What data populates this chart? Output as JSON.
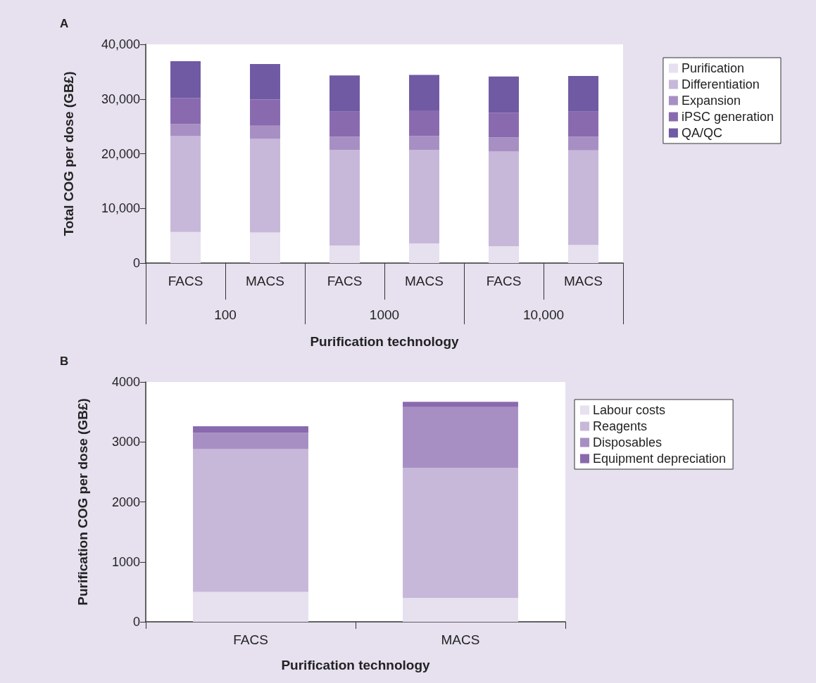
{
  "chart_data": [
    {
      "type": "bar",
      "title": "A",
      "stacked": true,
      "ylabel": "Total COG per dose (GB£)",
      "xlabel": "Purification technology",
      "categories": [
        "FACS",
        "MACS",
        "FACS",
        "MACS",
        "FACS",
        "MACS"
      ],
      "annotations": [
        "100",
        "1000",
        "10,000"
      ],
      "series": [
        {
          "name": "Purification",
          "color": "#e6e0ef",
          "values": [
            5700,
            5600,
            3200,
            3600,
            3100,
            3300
          ]
        },
        {
          "name": "Differentiation",
          "color": "#c7b8da",
          "values": [
            17500,
            17100,
            17500,
            17100,
            17300,
            17300
          ]
        },
        {
          "name": "Expansion",
          "color": "#a78fc4",
          "values": [
            2200,
            2400,
            2400,
            2500,
            2600,
            2500
          ]
        },
        {
          "name": "iPSC generation",
          "color": "#8a6aae",
          "values": [
            4800,
            4800,
            4600,
            4700,
            4500,
            4600
          ]
        },
        {
          "name": "QA/QC",
          "color": "#6f5aa3",
          "values": [
            6700,
            6500,
            6600,
            6500,
            6600,
            6500
          ]
        }
      ],
      "ylim": [
        0,
        40000
      ],
      "yticks": [
        {
          "value": 0,
          "label": "0"
        },
        {
          "value": 10000,
          "label": "10,000"
        },
        {
          "value": 20000,
          "label": "20,000"
        },
        {
          "value": 30000,
          "label": "30,000"
        },
        {
          "value": 40000,
          "label": "40,000"
        }
      ],
      "grid": false,
      "legend": "top right"
    },
    {
      "type": "bar",
      "title": "B",
      "stacked": true,
      "ylabel": "Purification COG per dose (GB£)",
      "xlabel": "Purification technology",
      "categories": [
        "FACS",
        "MACS"
      ],
      "series": [
        {
          "name": "Labour costs",
          "color": "#e6e0ef",
          "values": [
            500,
            400
          ]
        },
        {
          "name": "Reagents",
          "color": "#c7b8da",
          "values": [
            2380,
            2170
          ]
        },
        {
          "name": "Disposables",
          "color": "#a78fc4",
          "values": [
            270,
            1010
          ]
        },
        {
          "name": "Equipment depreciation",
          "color": "#8a6aae",
          "values": [
            110,
            90
          ]
        }
      ],
      "ylim": [
        0,
        4000
      ],
      "yticks": [
        0,
        1000,
        2000,
        3000,
        4000
      ],
      "grid": false,
      "legend": "right"
    }
  ]
}
